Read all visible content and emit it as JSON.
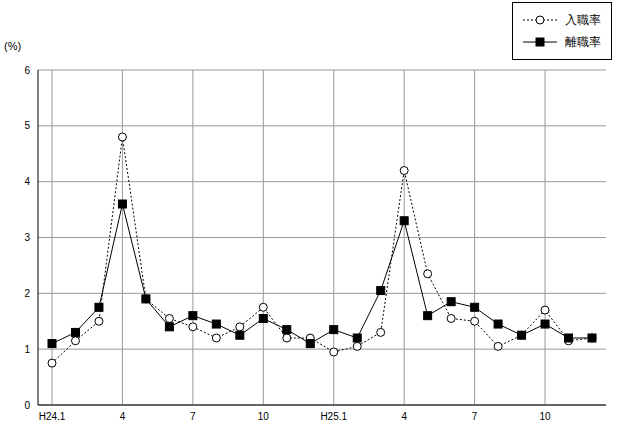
{
  "chart_data": {
    "type": "line",
    "y_label": "(%)",
    "categories": [
      "H24.1",
      null,
      null,
      "4",
      null,
      null,
      "7",
      null,
      null,
      "10",
      null,
      null,
      "H25.1",
      null,
      null,
      "4",
      null,
      null,
      "7",
      null,
      null,
      "10",
      null,
      null
    ],
    "series": [
      {
        "name": "入職率",
        "color": "#000000",
        "marker": "circle",
        "line_style": "dotted",
        "values": [
          0.75,
          1.15,
          1.5,
          4.8,
          1.9,
          1.55,
          1.4,
          1.2,
          1.4,
          1.75,
          1.2,
          1.2,
          0.95,
          1.05,
          1.3,
          4.2,
          2.35,
          1.55,
          1.5,
          1.05,
          1.25,
          1.7,
          1.15,
          1.2
        ]
      },
      {
        "name": "離職率",
        "color": "#000000",
        "marker": "square",
        "line_style": "solid",
        "values": [
          1.1,
          1.3,
          1.75,
          3.6,
          1.9,
          1.4,
          1.6,
          1.45,
          1.25,
          1.55,
          1.35,
          1.1,
          1.35,
          1.2,
          2.05,
          3.3,
          1.6,
          1.85,
          1.75,
          1.45,
          1.25,
          1.45,
          1.2,
          1.2
        ]
      }
    ],
    "ylim": [
      0,
      6
    ],
    "yticks": [
      0,
      1,
      2,
      3,
      4,
      5,
      6
    ],
    "grid": true,
    "legend": "upper right"
  }
}
